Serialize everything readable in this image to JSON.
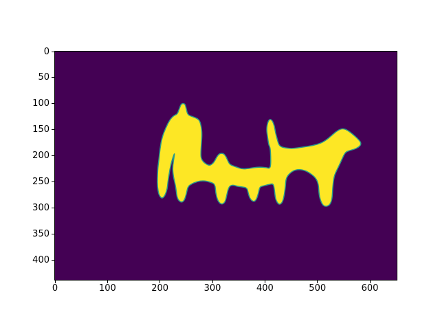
{
  "chart_data": {
    "type": "heatmap",
    "title": "",
    "xlabel": "",
    "ylabel": "",
    "description": "Binary segmentation mask rendered with a viridis colormap: a yellow silhouette of animals (cat-like figure on the left, dog facing right) on a dark purple background, y-axis in image coordinates (inverted).",
    "x_ticks": [
      0,
      100,
      200,
      300,
      400,
      500,
      600
    ],
    "y_ticks": [
      0,
      50,
      100,
      150,
      200,
      250,
      300,
      350,
      400
    ],
    "x_range": [
      0,
      651
    ],
    "y_range": [
      0,
      437
    ],
    "y_inverted": true,
    "grid": false,
    "legend": false,
    "background_value_color": "#440154",
    "mask_value_color": "#fde725",
    "mask_edge_color": "#2a9a8c",
    "axis_color": "#000000",
    "figure_background": "#ffffff",
    "mask_polygon": [
      [
        244,
        99
      ],
      [
        248,
        101
      ],
      [
        250,
        109
      ],
      [
        252,
        118
      ],
      [
        255,
        122
      ],
      [
        263,
        125
      ],
      [
        271,
        128
      ],
      [
        276,
        133
      ],
      [
        279,
        145
      ],
      [
        280,
        159
      ],
      [
        279,
        175
      ],
      [
        278,
        191
      ],
      [
        278,
        204
      ],
      [
        283,
        212
      ],
      [
        291,
        217
      ],
      [
        296,
        218
      ],
      [
        303,
        212
      ],
      [
        309,
        200
      ],
      [
        314,
        195
      ],
      [
        321,
        195
      ],
      [
        326,
        201
      ],
      [
        330,
        211
      ],
      [
        334,
        217
      ],
      [
        343,
        220
      ],
      [
        356,
        225
      ],
      [
        369,
        224
      ],
      [
        386,
        221
      ],
      [
        402,
        222
      ],
      [
        409,
        224
      ],
      [
        411,
        217
      ],
      [
        411,
        201
      ],
      [
        410,
        184
      ],
      [
        407,
        178
      ],
      [
        405,
        164
      ],
      [
        403,
        149
      ],
      [
        405,
        136
      ],
      [
        409,
        129
      ],
      [
        414,
        132
      ],
      [
        418,
        142
      ],
      [
        420,
        155
      ],
      [
        424,
        170
      ],
      [
        427,
        180
      ],
      [
        435,
        184
      ],
      [
        452,
        186
      ],
      [
        472,
        183
      ],
      [
        491,
        180
      ],
      [
        508,
        175
      ],
      [
        520,
        167
      ],
      [
        531,
        157
      ],
      [
        540,
        150
      ],
      [
        549,
        147
      ],
      [
        558,
        151
      ],
      [
        567,
        158
      ],
      [
        576,
        166
      ],
      [
        583,
        174
      ],
      [
        582,
        180
      ],
      [
        574,
        186
      ],
      [
        563,
        189
      ],
      [
        554,
        192
      ],
      [
        549,
        201
      ],
      [
        542,
        217
      ],
      [
        534,
        233
      ],
      [
        531,
        243
      ],
      [
        529,
        262
      ],
      [
        528,
        283
      ],
      [
        523,
        295
      ],
      [
        513,
        297
      ],
      [
        507,
        289
      ],
      [
        503,
        274
      ],
      [
        502,
        254
      ],
      [
        497,
        242
      ],
      [
        485,
        232
      ],
      [
        472,
        226
      ],
      [
        458,
        226
      ],
      [
        447,
        233
      ],
      [
        440,
        243
      ],
      [
        439,
        259
      ],
      [
        436,
        280
      ],
      [
        432,
        291
      ],
      [
        426,
        293
      ],
      [
        420,
        283
      ],
      [
        418,
        264
      ],
      [
        416,
        253
      ],
      [
        409,
        254
      ],
      [
        398,
        257
      ],
      [
        390,
        259
      ],
      [
        388,
        270
      ],
      [
        384,
        283
      ],
      [
        379,
        288
      ],
      [
        372,
        283
      ],
      [
        368,
        271
      ],
      [
        366,
        261
      ],
      [
        356,
        259
      ],
      [
        347,
        258
      ],
      [
        338,
        255
      ],
      [
        331,
        259
      ],
      [
        327,
        276
      ],
      [
        324,
        289
      ],
      [
        317,
        293
      ],
      [
        310,
        286
      ],
      [
        306,
        270
      ],
      [
        305,
        254
      ],
      [
        296,
        250
      ],
      [
        283,
        247
      ],
      [
        270,
        249
      ],
      [
        259,
        254
      ],
      [
        253,
        259
      ],
      [
        250,
        274
      ],
      [
        246,
        286
      ],
      [
        240,
        289
      ],
      [
        233,
        282
      ],
      [
        231,
        267
      ],
      [
        229,
        254
      ],
      [
        225,
        237
      ],
      [
        224,
        220
      ],
      [
        227,
        201
      ],
      [
        228,
        193
      ],
      [
        221,
        214
      ],
      [
        217,
        237
      ],
      [
        215,
        251
      ],
      [
        214,
        262
      ],
      [
        210,
        275
      ],
      [
        204,
        282
      ],
      [
        198,
        275
      ],
      [
        195,
        259
      ],
      [
        195,
        241
      ],
      [
        196,
        221
      ],
      [
        198,
        207
      ],
      [
        200,
        186
      ],
      [
        204,
        164
      ],
      [
        211,
        146
      ],
      [
        219,
        130
      ],
      [
        227,
        122
      ],
      [
        233,
        120
      ],
      [
        237,
        109
      ],
      [
        240,
        101
      ]
    ]
  }
}
